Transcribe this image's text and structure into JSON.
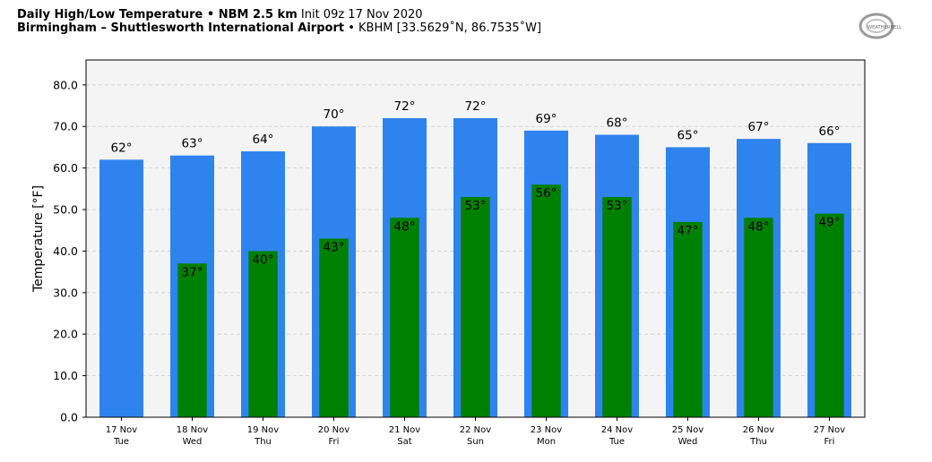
{
  "header": {
    "title_bold": "Daily High/Low Temperature • NBM 2.5 km",
    "title_init": "Init 09z 17 Nov 2020",
    "location_bold": "Birmingham – Shuttlesworth International Airport",
    "location_detail": "• KBHM [33.5629˚N, 86.7535˚W]"
  },
  "logo": {
    "text": "WEATHERBELL"
  },
  "colors": {
    "high_bar": "#2f83ee",
    "low_bar": "#008000",
    "plot_background": "#f4f4f4",
    "grid": "#cccccc"
  },
  "chart_data": {
    "type": "bar",
    "ylabel": "Temperature [°F]",
    "ylim": [
      0,
      86
    ],
    "yticks": [
      "0.0",
      "10.0",
      "20.0",
      "30.0",
      "40.0",
      "50.0",
      "60.0",
      "70.0",
      "80.0"
    ],
    "ytick_values": [
      0,
      10,
      20,
      30,
      40,
      50,
      60,
      70,
      80
    ],
    "grid": "horizontal dashed",
    "categories": [
      {
        "date": "17 Nov",
        "day": "Tue"
      },
      {
        "date": "18 Nov",
        "day": "Wed"
      },
      {
        "date": "19 Nov",
        "day": "Thu"
      },
      {
        "date": "20 Nov",
        "day": "Fri"
      },
      {
        "date": "21 Nov",
        "day": "Sat"
      },
      {
        "date": "22 Nov",
        "day": "Sun"
      },
      {
        "date": "23 Nov",
        "day": "Mon"
      },
      {
        "date": "24 Nov",
        "day": "Tue"
      },
      {
        "date": "25 Nov",
        "day": "Wed"
      },
      {
        "date": "26 Nov",
        "day": "Thu"
      },
      {
        "date": "27 Nov",
        "day": "Fri"
      }
    ],
    "series": [
      {
        "values": [
          62,
          63,
          64,
          70,
          72,
          72,
          69,
          68,
          65,
          67,
          66
        ],
        "labels": [
          "62°",
          "63°",
          "64°",
          "70°",
          "72°",
          "72°",
          "69°",
          "68°",
          "65°",
          "67°",
          "66°"
        ]
      },
      {
        "values": [
          null,
          37,
          40,
          43,
          48,
          53,
          56,
          53,
          47,
          48,
          49
        ],
        "labels": [
          "",
          "37°",
          "40°",
          "43°",
          "48°",
          "53°",
          "56°",
          "53°",
          "47°",
          "48°",
          "49°"
        ]
      }
    ]
  }
}
